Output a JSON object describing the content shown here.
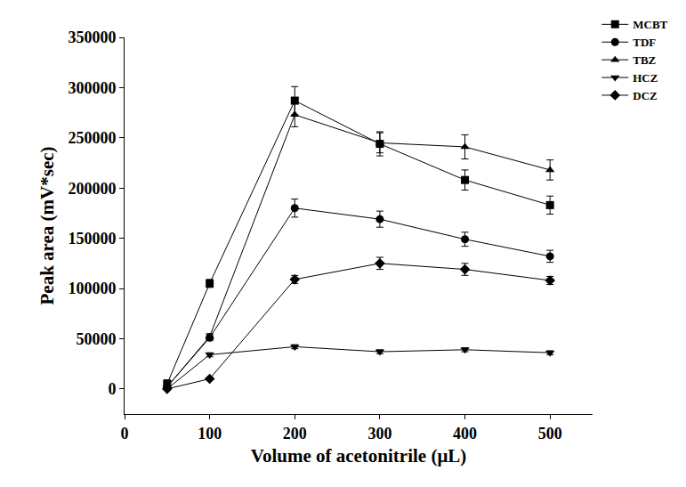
{
  "chart_data": {
    "type": "line",
    "x_label": "Volume of acetonitrile (μL)",
    "y_label": "Peak area (mV*sec)",
    "x": [
      50,
      100,
      200,
      300,
      400,
      500
    ],
    "series": [
      {
        "name": "MCBT",
        "color": "#000000",
        "marker": "square",
        "values": [
          5000,
          105000,
          287000,
          244000,
          208000,
          183000
        ],
        "errors": [
          4000,
          4000,
          14000,
          12000,
          10000,
          9000
        ]
      },
      {
        "name": "TDF",
        "color": "#000000",
        "marker": "circle",
        "values": [
          2000,
          51000,
          180000,
          169000,
          149000,
          132000
        ],
        "errors": [
          1000,
          3000,
          9000,
          8000,
          7000,
          6000
        ]
      },
      {
        "name": "TBZ",
        "color": "#000000",
        "marker": "triangle-up",
        "values": [
          2000,
          52000,
          273000,
          245000,
          241000,
          218000
        ],
        "errors": [
          1000,
          3000,
          12000,
          10000,
          12000,
          10000
        ]
      },
      {
        "name": "HCZ",
        "color": "#000000",
        "marker": "triangle-down",
        "values": [
          0,
          34000,
          42000,
          37000,
          39000,
          36000
        ],
        "errors": [
          500,
          2000,
          2000,
          2000,
          2000,
          2000
        ]
      },
      {
        "name": "DCZ",
        "color": "#000000",
        "marker": "diamond",
        "values": [
          0,
          10000,
          109000,
          125000,
          119000,
          108000
        ],
        "errors": [
          500,
          1000,
          4000,
          6000,
          6000,
          4000
        ]
      }
    ],
    "xlim": [
      0,
      550
    ],
    "xticks": [
      0,
      100,
      200,
      300,
      400,
      500
    ],
    "ylim": [
      -25000,
      350000
    ],
    "yticks": [
      0,
      50000,
      100000,
      150000,
      200000,
      250000,
      300000,
      350000
    ],
    "grid": false,
    "legend": "top right"
  }
}
